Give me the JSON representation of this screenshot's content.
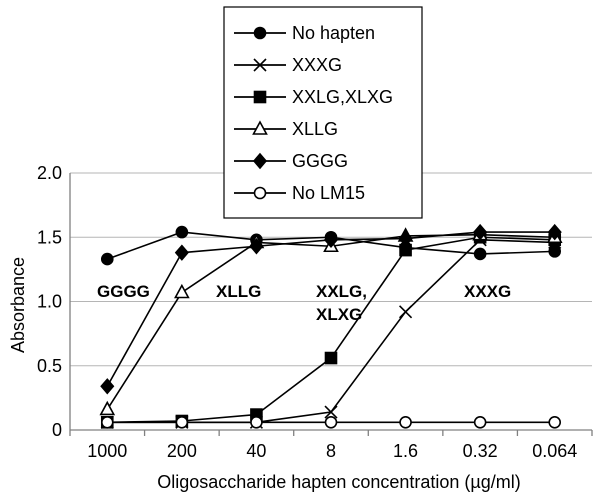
{
  "chart_data": {
    "type": "line",
    "title": "",
    "xlabel": "Oligosaccharide hapten concentration (µg/ml)",
    "ylabel": "Absorbance",
    "categories": [
      "1000",
      "200",
      "40",
      "8",
      "1.6",
      "0.32",
      "0.064"
    ],
    "ylim": [
      0,
      2.0
    ],
    "yticks": [
      "0",
      "0.5",
      "1.0",
      "1.5",
      "2.0"
    ],
    "grid": true,
    "legend_position": "top-center",
    "series": [
      {
        "name": "No hapten",
        "marker": "circle-filled",
        "values": [
          1.33,
          1.54,
          1.48,
          1.5,
          1.42,
          1.37,
          1.39
        ]
      },
      {
        "name": "XXXG",
        "marker": "x",
        "values": [
          0.06,
          0.06,
          0.06,
          0.14,
          0.92,
          1.48,
          1.46
        ]
      },
      {
        "name": "XXLG,XLXG",
        "marker": "square-filled",
        "values": [
          0.06,
          0.07,
          0.12,
          0.56,
          1.4,
          1.5,
          1.48
        ]
      },
      {
        "name": "XLLG",
        "marker": "triangle-open",
        "values": [
          0.16,
          1.07,
          1.46,
          1.43,
          1.51,
          1.52,
          1.5
        ]
      },
      {
        "name": "GGGG",
        "marker": "diamond-filled",
        "values": [
          0.34,
          1.38,
          1.43,
          1.48,
          1.49,
          1.54,
          1.54
        ]
      },
      {
        "name": "No LM15",
        "marker": "circle-open",
        "values": [
          0.06,
          0.06,
          0.06,
          0.06,
          0.06,
          0.06,
          0.06
        ]
      }
    ],
    "annotations": [
      {
        "text": "GGGG"
      },
      {
        "text": "XLLG"
      },
      {
        "text": "XXLG,"
      },
      {
        "text": "XLXG"
      },
      {
        "text": "XXXG"
      }
    ]
  }
}
